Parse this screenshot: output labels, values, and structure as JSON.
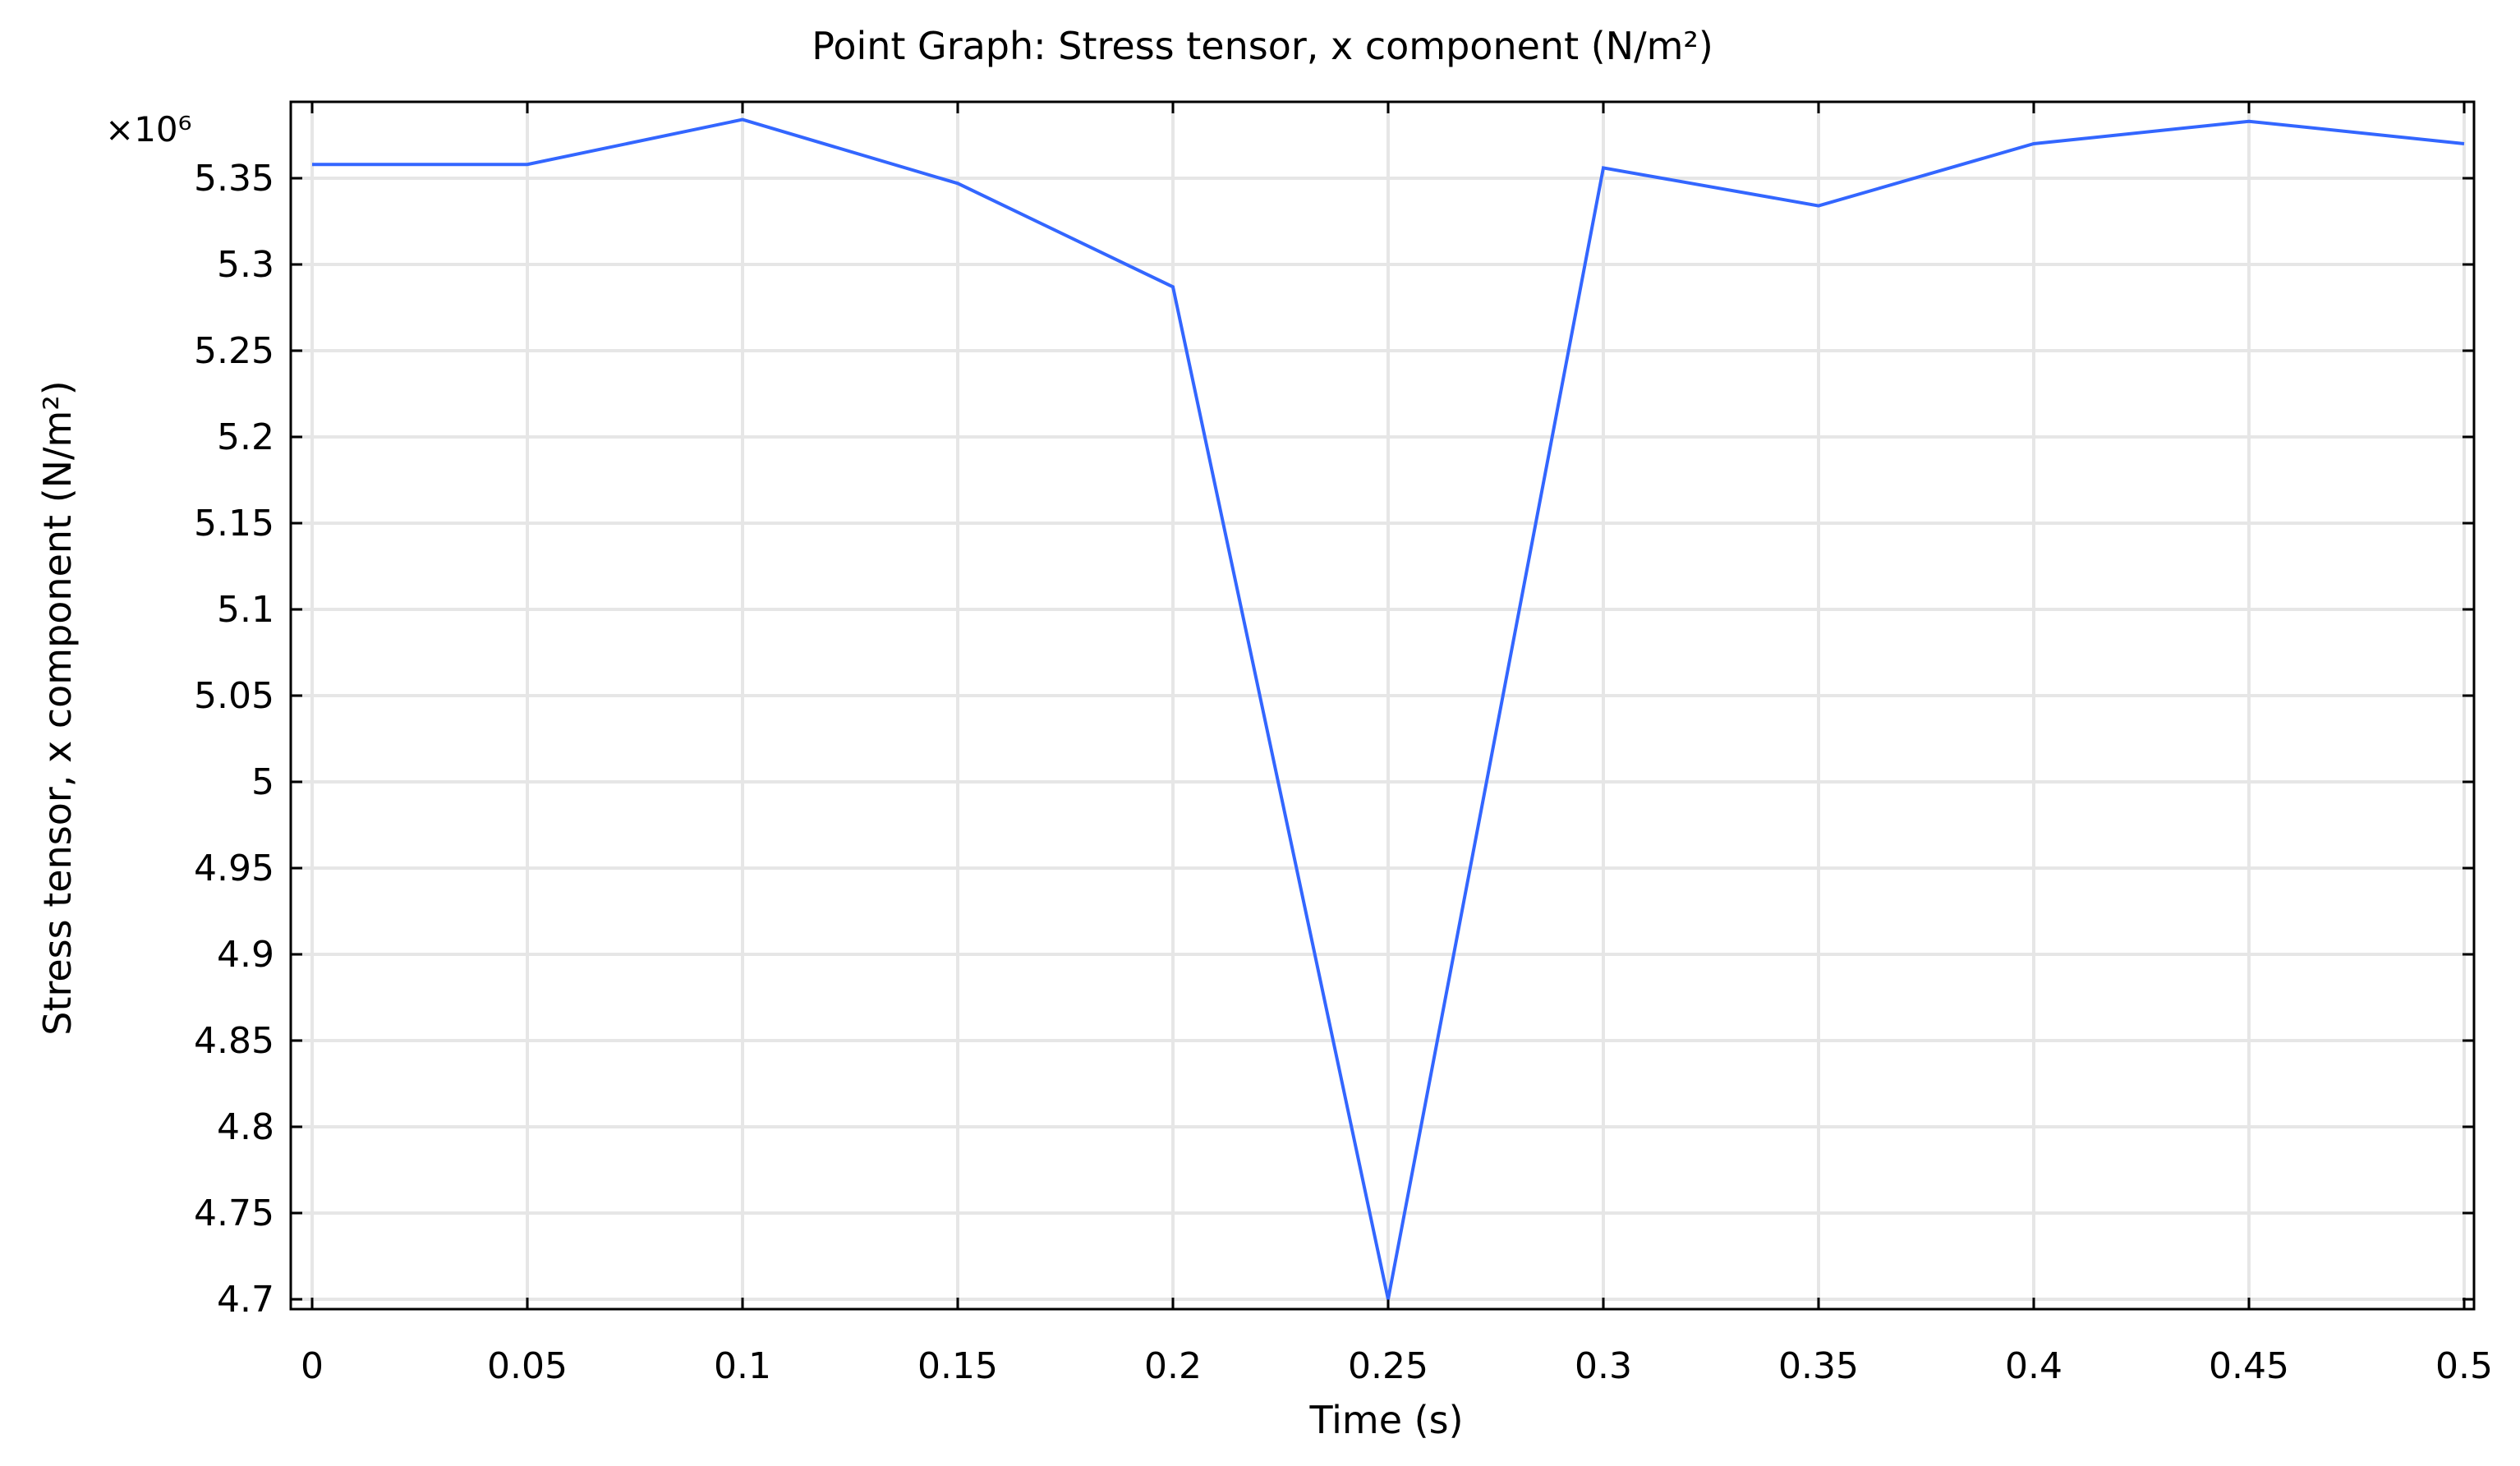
{
  "chart_data": {
    "type": "line",
    "title": "Point Graph: Stress tensor, x component (N/m²)",
    "xlabel": "Time (s)",
    "ylabel": "Stress tensor, x component (N/m²)",
    "y_multiplier_label": "×10⁶",
    "xlim": [
      0,
      0.5
    ],
    "ylim": [
      4.7,
      5.38
    ],
    "x_ticks": [
      0,
      0.05,
      0.1,
      0.15,
      0.2,
      0.25,
      0.3,
      0.35,
      0.4,
      0.45,
      0.5
    ],
    "x_tick_labels": [
      "0",
      "0.05",
      "0.1",
      "0.15",
      "0.2",
      "0.25",
      "0.3",
      "0.35",
      "0.4",
      "0.45",
      "0.5"
    ],
    "y_ticks": [
      4.7,
      4.75,
      4.8,
      4.85,
      4.9,
      4.95,
      5.0,
      5.05,
      5.1,
      5.15,
      5.2,
      5.25,
      5.3,
      5.35
    ],
    "y_tick_labels": [
      "4.7",
      "4.75",
      "4.8",
      "4.85",
      "4.9",
      "4.95",
      "5",
      "5.05",
      "5.1",
      "5.15",
      "5.2",
      "5.25",
      "5.3",
      "5.35"
    ],
    "grid": true,
    "series": [
      {
        "color": "#3366ff",
        "x": [
          0,
          0.05,
          0.1,
          0.15,
          0.2,
          0.25,
          0.3,
          0.35,
          0.4,
          0.45,
          0.5
        ],
        "y": [
          5.358,
          5.358,
          5.384,
          5.347,
          5.287,
          4.7,
          5.356,
          5.334,
          5.37,
          5.383,
          5.37
        ]
      }
    ]
  }
}
